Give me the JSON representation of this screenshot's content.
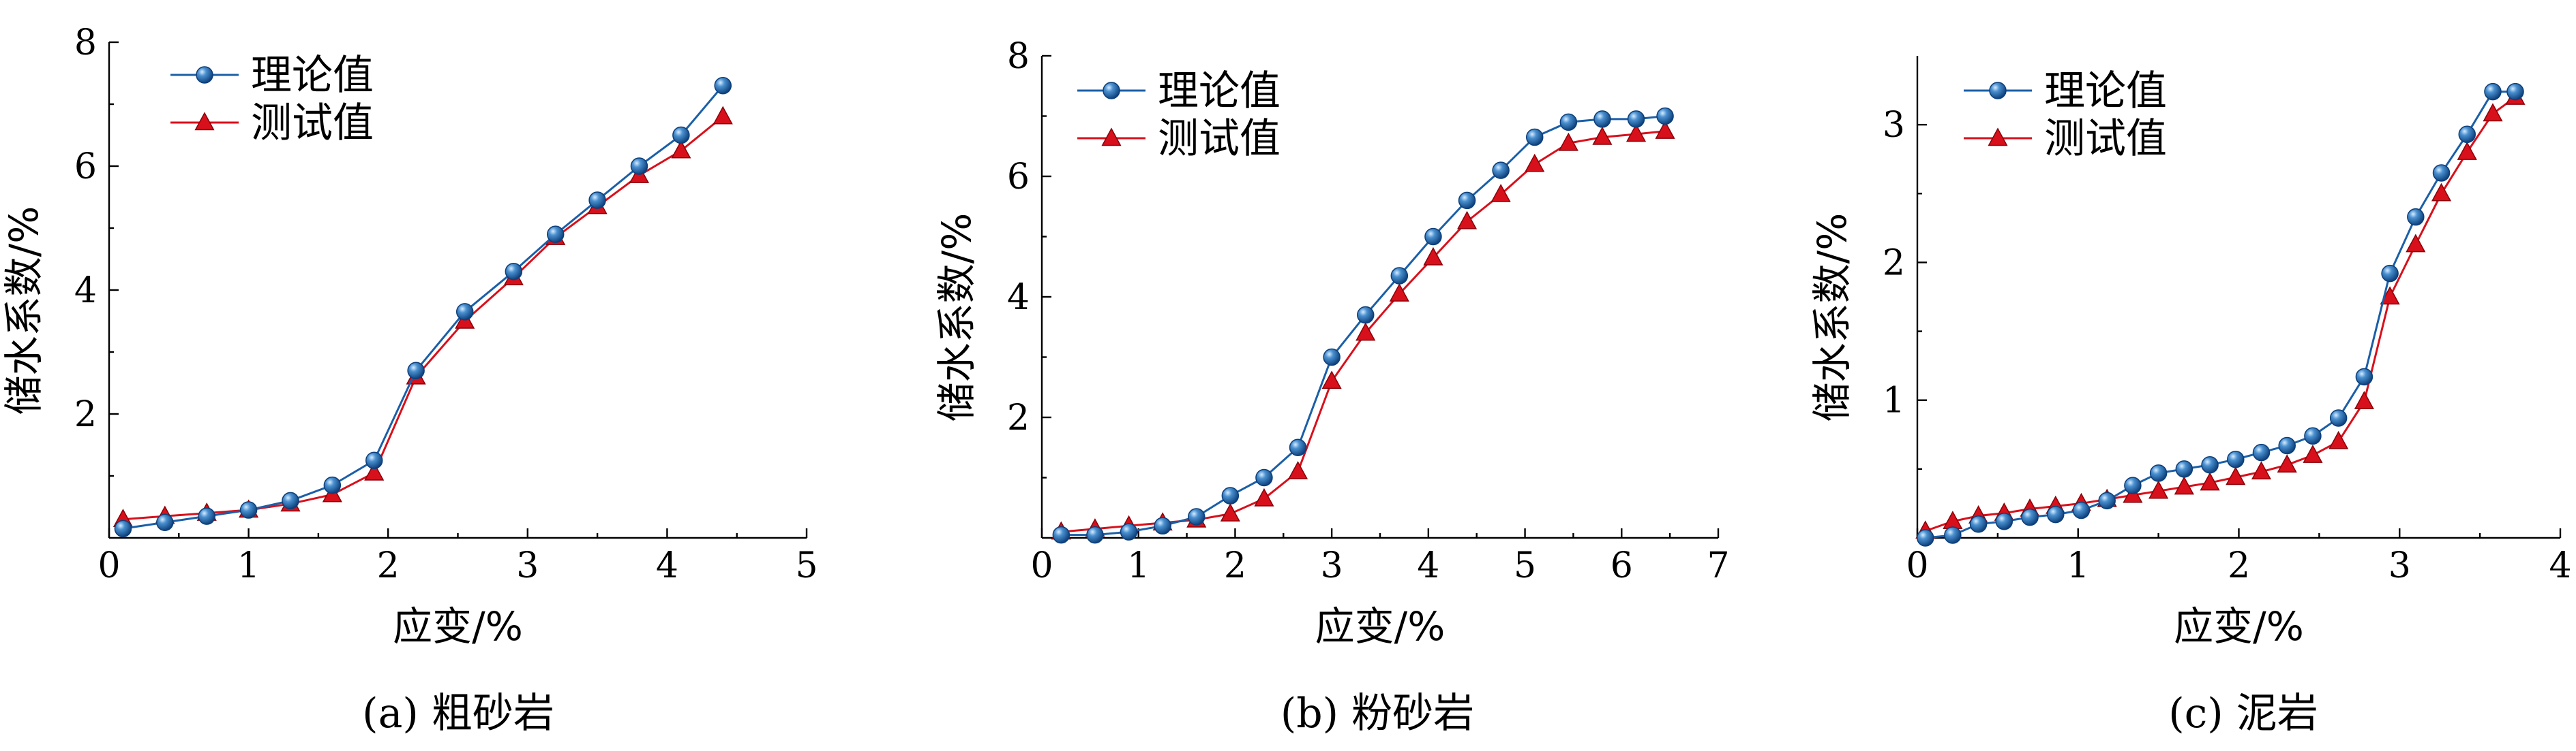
{
  "colors": {
    "theory": "#1a5fa8",
    "test": "#d8101b",
    "axis": "#000000"
  },
  "chart_data": [
    {
      "type": "line",
      "caption": "(a) 粗砂岩",
      "xlabel": "应变/%",
      "ylabel": "储水系数/%",
      "xlim": [
        0,
        5
      ],
      "ylim": [
        0,
        8
      ],
      "xticks": [
        0,
        1,
        2,
        3,
        4,
        5
      ],
      "yticks": [
        2,
        4,
        6,
        8
      ],
      "grid": false,
      "legend_position": "top-left",
      "series": [
        {
          "name": "理论值",
          "marker": "circle",
          "x": [
            0.1,
            0.4,
            0.7,
            1.0,
            1.3,
            1.6,
            1.9,
            2.2,
            2.55,
            2.9,
            3.2,
            3.5,
            3.8,
            4.1,
            4.4
          ],
          "y": [
            0.15,
            0.25,
            0.35,
            0.45,
            0.6,
            0.85,
            1.25,
            2.7,
            3.65,
            4.3,
            4.9,
            5.45,
            6.0,
            6.5,
            7.3
          ]
        },
        {
          "name": "测试值",
          "marker": "triangle",
          "x": [
            0.1,
            0.4,
            0.7,
            1.0,
            1.3,
            1.6,
            1.9,
            2.2,
            2.55,
            2.9,
            3.2,
            3.5,
            3.8,
            4.1,
            4.4
          ],
          "y": [
            0.3,
            0.35,
            0.4,
            0.45,
            0.55,
            0.7,
            1.05,
            2.6,
            3.5,
            4.2,
            4.85,
            5.35,
            5.85,
            6.25,
            6.8
          ]
        }
      ]
    },
    {
      "type": "line",
      "caption": "(b) 粉砂岩",
      "xlabel": "应变/%",
      "ylabel": "储水系数/%",
      "xlim": [
        0,
        7
      ],
      "ylim": [
        0,
        8
      ],
      "xticks": [
        0,
        1,
        2,
        3,
        4,
        5,
        6,
        7
      ],
      "yticks": [
        2,
        4,
        6,
        8
      ],
      "grid": false,
      "legend_position": "top-left",
      "series": [
        {
          "name": "理论值",
          "marker": "circle",
          "x": [
            0.2,
            0.55,
            0.9,
            1.25,
            1.6,
            1.95,
            2.3,
            2.65,
            3.0,
            3.35,
            3.7,
            4.05,
            4.4,
            4.75,
            5.1,
            5.45,
            5.8,
            6.15,
            6.45
          ],
          "y": [
            0.05,
            0.05,
            0.1,
            0.2,
            0.35,
            0.7,
            1.0,
            1.5,
            3.0,
            3.7,
            4.35,
            5.0,
            5.6,
            6.1,
            6.65,
            6.9,
            6.95,
            6.95,
            7.0
          ]
        },
        {
          "name": "测试值",
          "marker": "triangle",
          "x": [
            0.2,
            0.55,
            0.9,
            1.25,
            1.6,
            1.95,
            2.3,
            2.65,
            3.0,
            3.35,
            3.7,
            4.05,
            4.4,
            4.75,
            5.1,
            5.45,
            5.8,
            6.15,
            6.45
          ],
          "y": [
            0.1,
            0.15,
            0.2,
            0.25,
            0.3,
            0.4,
            0.65,
            1.1,
            2.6,
            3.4,
            4.05,
            4.65,
            5.25,
            5.7,
            6.2,
            6.55,
            6.65,
            6.7,
            6.75
          ]
        }
      ]
    },
    {
      "type": "line",
      "caption": "(c) 泥岩",
      "xlabel": "应变/%",
      "ylabel": "储水系数/%",
      "xlim": [
        0,
        4
      ],
      "ylim": [
        0,
        3.5
      ],
      "xticks": [
        0,
        1,
        2,
        3,
        4
      ],
      "yticks": [
        1,
        2,
        3
      ],
      "grid": false,
      "legend_position": "top-left",
      "series": [
        {
          "name": "理论值",
          "marker": "circle",
          "x": [
            0.05,
            0.22,
            0.38,
            0.54,
            0.7,
            0.86,
            1.02,
            1.18,
            1.34,
            1.5,
            1.66,
            1.82,
            1.98,
            2.14,
            2.3,
            2.46,
            2.62,
            2.78,
            2.94,
            3.1,
            3.26,
            3.42,
            3.58,
            3.72
          ],
          "y": [
            0.0,
            0.02,
            0.1,
            0.12,
            0.15,
            0.17,
            0.2,
            0.27,
            0.38,
            0.47,
            0.5,
            0.53,
            0.57,
            0.62,
            0.67,
            0.74,
            0.87,
            1.17,
            1.92,
            2.33,
            2.65,
            2.93,
            3.24,
            3.24
          ]
        },
        {
          "name": "测试值",
          "marker": "triangle",
          "x": [
            0.05,
            0.22,
            0.38,
            0.54,
            0.7,
            0.86,
            1.02,
            1.18,
            1.34,
            1.5,
            1.66,
            1.82,
            1.98,
            2.14,
            2.3,
            2.46,
            2.62,
            2.78,
            2.94,
            3.1,
            3.26,
            3.42,
            3.58,
            3.72
          ],
          "y": [
            0.05,
            0.12,
            0.16,
            0.18,
            0.21,
            0.23,
            0.25,
            0.28,
            0.31,
            0.34,
            0.37,
            0.4,
            0.44,
            0.48,
            0.53,
            0.6,
            0.7,
            0.99,
            1.75,
            2.13,
            2.5,
            2.8,
            3.08,
            3.2
          ]
        }
      ]
    }
  ]
}
